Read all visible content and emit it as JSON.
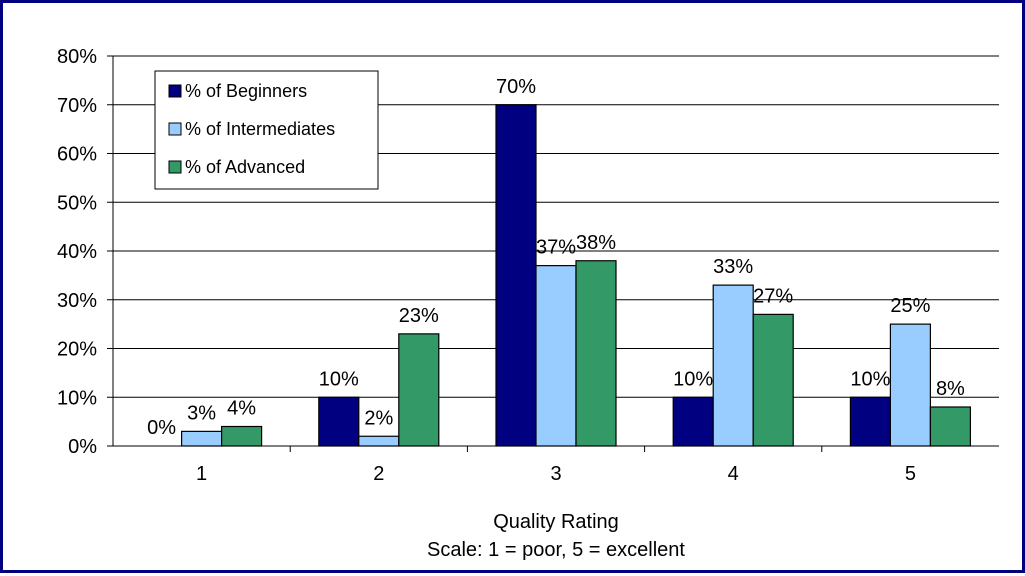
{
  "chart_data": {
    "type": "bar",
    "categories": [
      "1",
      "2",
      "3",
      "4",
      "5"
    ],
    "series": [
      {
        "name": "% of Beginners",
        "color": "#000080",
        "values": [
          0,
          10,
          70,
          10,
          10
        ],
        "labels": [
          "0%",
          "10%",
          "70%",
          "10%",
          "10%"
        ]
      },
      {
        "name": "% of Intermediates",
        "color": "#99ccff",
        "values": [
          3,
          2,
          37,
          33,
          25
        ],
        "labels": [
          "3%",
          "2%",
          "37%",
          "33%",
          "25%"
        ]
      },
      {
        "name": "% of Advanced",
        "color": "#339966",
        "values": [
          4,
          23,
          38,
          27,
          8
        ],
        "labels": [
          "4%",
          "23%",
          "38%",
          "27%",
          "8%"
        ]
      }
    ],
    "ylim": [
      0,
      80
    ],
    "yticks": [
      "0%",
      "10%",
      "20%",
      "30%",
      "40%",
      "50%",
      "60%",
      "70%",
      "80%"
    ],
    "xlabel": "Quality Rating",
    "xlabel_sub": "Scale: 1 = poor, 5 = excellent",
    "ylabel": "",
    "grid": true,
    "legend_position": "top-left"
  }
}
